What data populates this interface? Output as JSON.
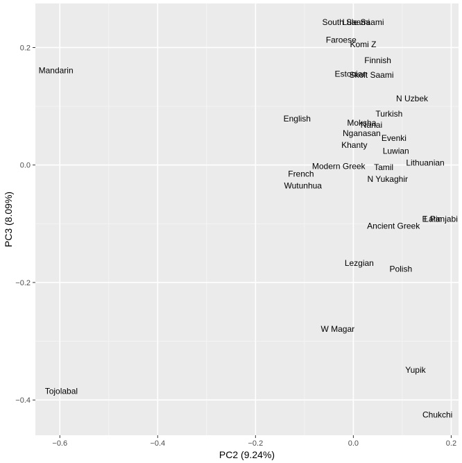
{
  "chart_data": {
    "type": "scatter",
    "xlabel": "PC2 (9.24%)",
    "ylabel": "PC3 (8.09%)",
    "xlim": [
      -0.65,
      0.215
    ],
    "ylim": [
      -0.46,
      0.275
    ],
    "xticks": [
      -0.6,
      -0.4,
      -0.2,
      0.0,
      0.2
    ],
    "xtick_labels": [
      "−0.6",
      "−0.4",
      "−0.2",
      "0.0",
      "0.2"
    ],
    "yticks": [
      -0.4,
      -0.2,
      0.0,
      0.2
    ],
    "ytick_labels": [
      "−0.4",
      "−0.2",
      "0.0",
      "0.2"
    ],
    "grid": true,
    "points": [
      {
        "label": "Mandarin",
        "x": -0.608,
        "y": 0.161
      },
      {
        "label": "Tojolabal",
        "x": -0.597,
        "y": -0.385
      },
      {
        "label": "South Saami",
        "x": -0.015,
        "y": 0.243
      },
      {
        "label": "Lule Saami",
        "x": 0.02,
        "y": 0.243
      },
      {
        "label": "Faroese",
        "x": -0.025,
        "y": 0.213
      },
      {
        "label": "Komi Z",
        "x": 0.02,
        "y": 0.205
      },
      {
        "label": "Finnish",
        "x": 0.05,
        "y": 0.178
      },
      {
        "label": "Estonian",
        "x": -0.005,
        "y": 0.155
      },
      {
        "label": "Skolt Saami",
        "x": 0.037,
        "y": 0.153
      },
      {
        "label": "N Uzbek",
        "x": 0.12,
        "y": 0.113
      },
      {
        "label": "Turkish",
        "x": 0.073,
        "y": 0.087
      },
      {
        "label": "English",
        "x": -0.115,
        "y": 0.079
      },
      {
        "label": "Moksha",
        "x": 0.017,
        "y": 0.072
      },
      {
        "label": "Nanai",
        "x": 0.037,
        "y": 0.068
      },
      {
        "label": "Nganasan",
        "x": 0.017,
        "y": 0.054
      },
      {
        "label": "Evenki",
        "x": 0.083,
        "y": 0.046
      },
      {
        "label": "Khanty",
        "x": 0.002,
        "y": 0.034
      },
      {
        "label": "Luwian",
        "x": 0.087,
        "y": 0.024
      },
      {
        "label": "Lithuanian",
        "x": 0.147,
        "y": 0.004
      },
      {
        "label": "Modern Greek",
        "x": -0.03,
        "y": -0.002
      },
      {
        "label": "Tamil",
        "x": 0.062,
        "y": -0.004
      },
      {
        "label": "French",
        "x": -0.107,
        "y": -0.015
      },
      {
        "label": "N Yukaghir",
        "x": 0.07,
        "y": -0.024
      },
      {
        "label": "Wutunhua",
        "x": -0.103,
        "y": -0.035
      },
      {
        "label": "E Panjabi",
        "x": 0.177,
        "y": -0.092
      },
      {
        "label": "Latin",
        "x": 0.163,
        "y": -0.092
      },
      {
        "label": "Ancient Greek",
        "x": 0.082,
        "y": -0.104
      },
      {
        "label": "Lezgian",
        "x": 0.012,
        "y": -0.167
      },
      {
        "label": "Polish",
        "x": 0.097,
        "y": -0.177
      },
      {
        "label": "W Magar",
        "x": -0.032,
        "y": -0.279
      },
      {
        "label": "Yupik",
        "x": 0.127,
        "y": -0.349
      },
      {
        "label": "Chukchi",
        "x": 0.172,
        "y": -0.425
      }
    ]
  }
}
